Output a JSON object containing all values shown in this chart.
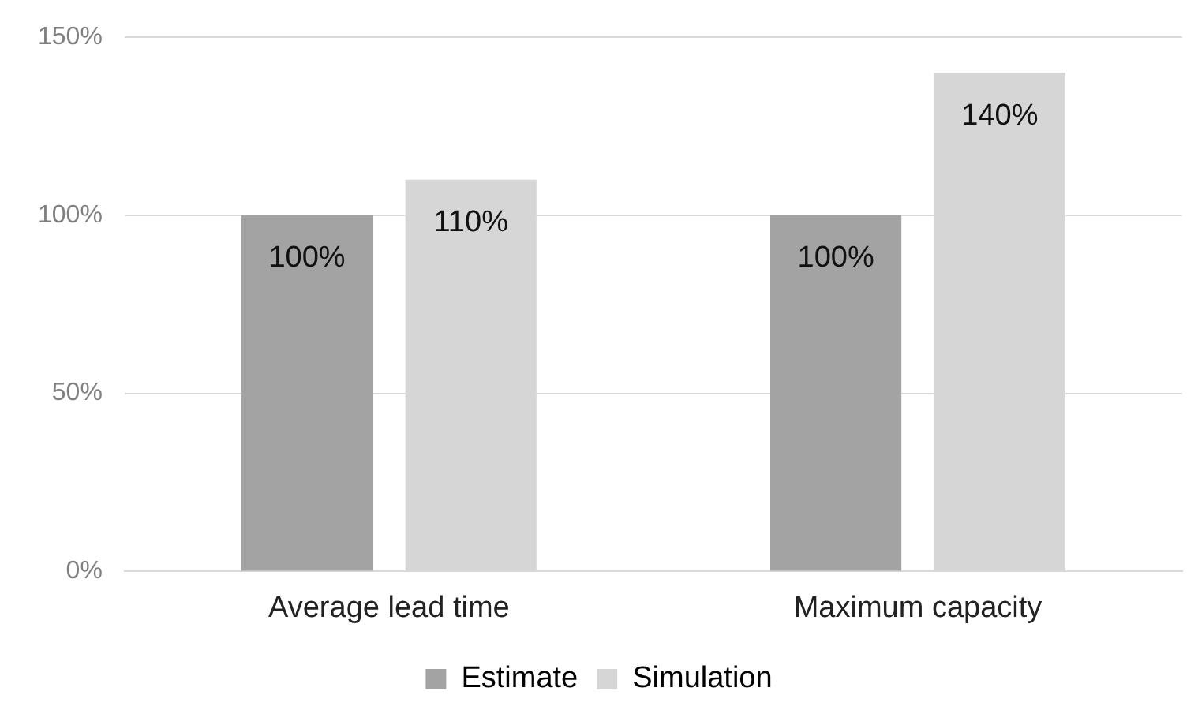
{
  "chart_data": {
    "type": "bar",
    "categories": [
      "Average lead time",
      "Maximum capacity"
    ],
    "series": [
      {
        "name": "Estimate",
        "color": "#a3a3a3",
        "values": [
          100,
          100
        ],
        "value_labels": [
          "100%",
          "100%"
        ]
      },
      {
        "name": "Simulation",
        "color": "#d6d6d6",
        "values": [
          110,
          140
        ],
        "value_labels": [
          "110%",
          "140%"
        ]
      }
    ],
    "ylim": [
      0,
      150
    ],
    "yticks": [
      {
        "value": 0,
        "label": "0%"
      },
      {
        "value": 50,
        "label": "50%"
      },
      {
        "value": 100,
        "label": "100%"
      },
      {
        "value": 150,
        "label": "150%"
      }
    ],
    "grid": "y",
    "legend": "bottom"
  }
}
